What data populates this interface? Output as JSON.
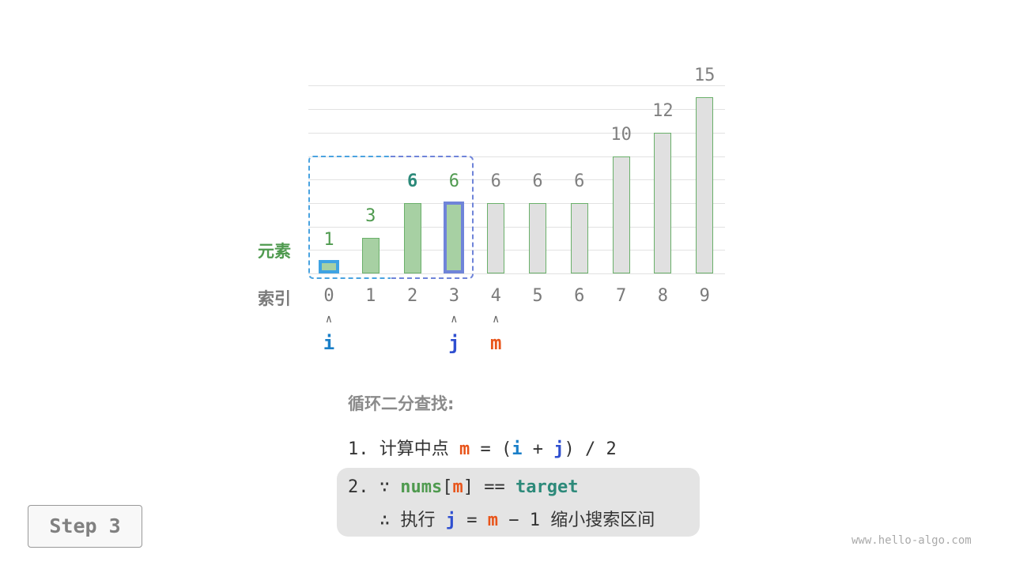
{
  "labels": {
    "element": "元素",
    "index": "索引"
  },
  "array": {
    "values": [
      1,
      3,
      6,
      6,
      6,
      6,
      6,
      10,
      12,
      15
    ],
    "indices": [
      "0",
      "1",
      "2",
      "3",
      "4",
      "5",
      "6",
      "7",
      "8",
      "9"
    ],
    "active_range": [
      0,
      3
    ],
    "highlight_value_index": 2
  },
  "pointers": {
    "i": {
      "label": "i",
      "index": 0,
      "color": "#1a7fc8"
    },
    "j": {
      "label": "j",
      "index": 3,
      "color": "#2f4fd0"
    },
    "m": {
      "label": "m",
      "index": 4,
      "color": "#e8541a"
    }
  },
  "colors": {
    "active_fill": "#a7d0a3",
    "inactive_fill": "#e0e0e0",
    "bar_stroke": "#6ab06a",
    "i_border": "#3fa3e3",
    "j_border": "#6f84d9",
    "value_green": "#4f9a4f",
    "value_teal": "#2d8a7a",
    "grey": "#808080"
  },
  "algo": {
    "title": "循环二分查找:",
    "step1": {
      "num": "1. ",
      "text": "计算中点 ",
      "m": "m",
      "eq": " = (",
      "i": "i",
      "plus": " + ",
      "j": "j",
      "rest": ") / 2"
    },
    "step2": {
      "num": "2. ",
      "because": "∵ ",
      "nums": "nums",
      "lb": "[",
      "m": "m",
      "rb": "]",
      "eqeq": " == ",
      "target": "target",
      "therefore": "∴ ",
      "exec": "执行 ",
      "j": "j",
      "eq": " = ",
      "m2": "m",
      "minus": " − 1 ",
      "shrink": "缩小搜索区间"
    }
  },
  "step_button": "Step 3",
  "watermark": "www.hello-algo.com"
}
